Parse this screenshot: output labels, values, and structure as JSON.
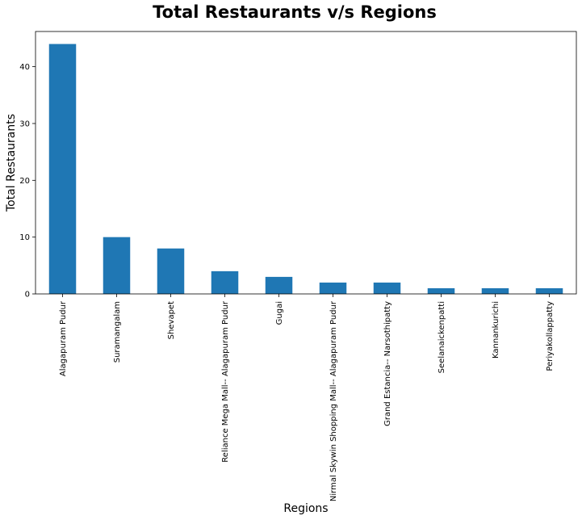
{
  "chart_data": {
    "type": "bar",
    "title": "Total Restaurants v/s Regions",
    "xlabel": "Regions",
    "ylabel": "Total Restaurants",
    "categories": [
      "Alagapuram Pudur",
      "Suramangalam",
      "Shevapet",
      "Reliance Mega Mall-- Alagapuram Pudur",
      "Gugai",
      "Nirmal Skywin Shopping Mall-- Alagapuram Pudur",
      "Grand Estancia-- Narsothipatty",
      "Seelanaickenpatti",
      "Kannankurichi",
      "Periyakollappatty"
    ],
    "values": [
      44,
      10,
      8,
      4,
      3,
      2,
      2,
      1,
      1,
      1
    ],
    "ylim": [
      0,
      46.2
    ],
    "yticks": [
      0,
      10,
      20,
      30,
      40
    ],
    "grid": false,
    "legend": "none",
    "bar_color": "#1f77b4"
  }
}
